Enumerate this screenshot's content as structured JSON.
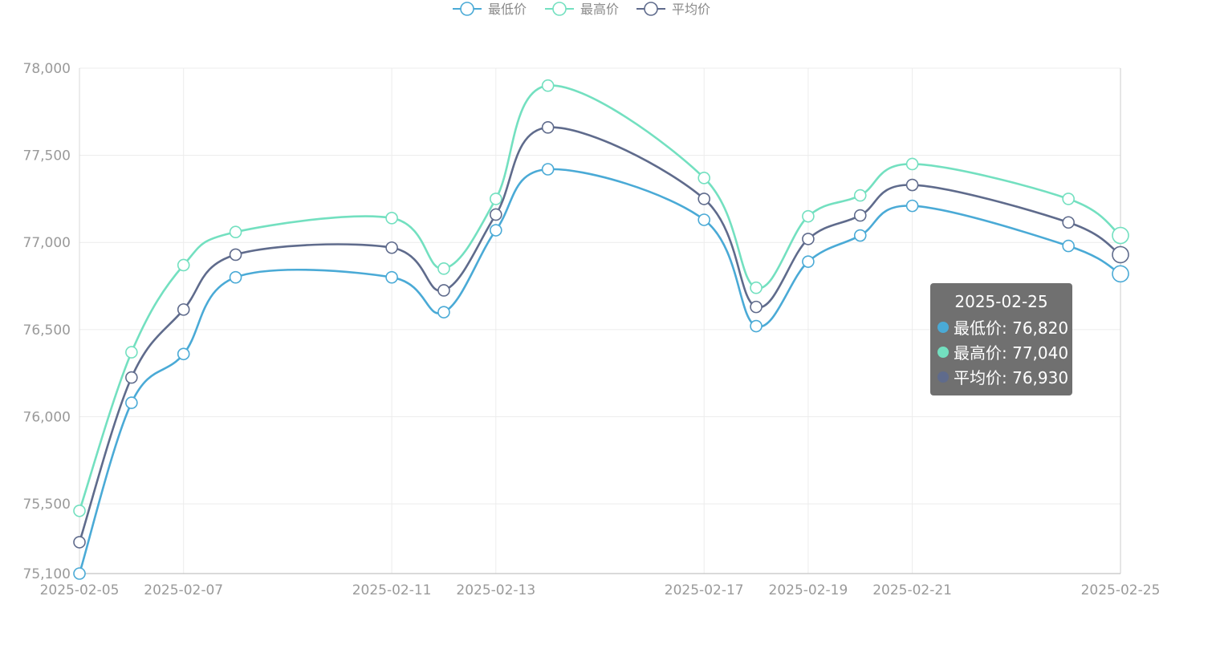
{
  "chart_data": {
    "type": "line",
    "smooth": true,
    "x": [
      "2025-02-05",
      "2025-02-06",
      "2025-02-07",
      "2025-02-08",
      "2025-02-11",
      "2025-02-12",
      "2025-02-13",
      "2025-02-14",
      "2025-02-17",
      "2025-02-18",
      "2025-02-19",
      "2025-02-20",
      "2025-02-21",
      "2025-02-24",
      "2025-02-25"
    ],
    "xtick_labels": [
      "2025-02-05",
      "2025-02-07",
      "2025-02-11",
      "2025-02-13",
      "2025-02-17",
      "2025-02-19",
      "2025-02-21",
      "2025-02-25"
    ],
    "ylim": [
      75100,
      78000
    ],
    "ytick_values": [
      75100,
      75500,
      76000,
      76500,
      77000,
      77500,
      78000
    ],
    "ytick_labels": [
      "75,100",
      "75,500",
      "76,000",
      "76,500",
      "77,000",
      "77,500",
      "78,000"
    ],
    "grid": true,
    "legend_position": "top-center",
    "series": [
      {
        "name": "最低价",
        "color": "#4aaad6",
        "values": [
          75100,
          76080,
          76360,
          76800,
          76800,
          76600,
          77070,
          77420,
          77130,
          76520,
          76890,
          77040,
          77210,
          76980,
          76820
        ]
      },
      {
        "name": "最高价",
        "color": "#73e0c0",
        "values": [
          75460,
          76370,
          76870,
          77060,
          77140,
          76850,
          77250,
          77900,
          77370,
          76740,
          77150,
          77270,
          77450,
          77250,
          77040
        ]
      },
      {
        "name": "平均价",
        "color": "#5f6b8c",
        "values": [
          75280,
          76225,
          76615,
          76930,
          76970,
          76725,
          77160,
          77660,
          77250,
          76630,
          77020,
          77155,
          77330,
          77115,
          76930
        ]
      }
    ],
    "tooltip": {
      "title": "2025-02-25",
      "rows": [
        {
          "label": "最低价: 76,820",
          "color": "#4aaad6"
        },
        {
          "label": "最高价: 77,040",
          "color": "#73e0c0"
        },
        {
          "label": "平均价: 76,930",
          "color": "#5f6b8c"
        }
      ]
    }
  }
}
